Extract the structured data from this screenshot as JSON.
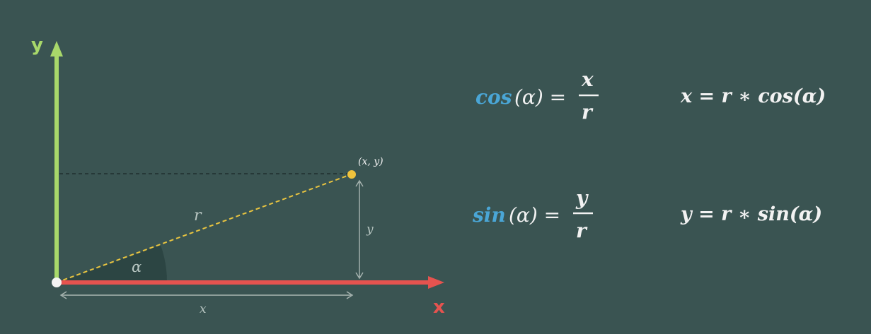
{
  "colors": {
    "background": "#3a5452",
    "y_axis": "#a8d86a",
    "x_axis": "#e5534f",
    "radius": "#e8c440",
    "point": "#f0c33c",
    "function_name": "#4aa6d6",
    "text": "#f2f2f2",
    "guides": "#a9b6b2"
  },
  "axes": {
    "y_label": "y",
    "x_label": "x"
  },
  "diagram": {
    "point_label": "(x, y)",
    "radius_label": "r",
    "angle_label": "α",
    "vertical_leg_label": "y",
    "horizontal_leg_label": "x"
  },
  "formulas": {
    "cos": {
      "fn": "cos",
      "arg": "(α) =",
      "numerator": "x",
      "denominator": "r",
      "solved": "x = r ∗ cos(α)"
    },
    "sin": {
      "fn": "sin",
      "arg": "(α) =",
      "numerator": "y",
      "denominator": "r",
      "solved": "y = r ∗ sin(α)"
    }
  }
}
